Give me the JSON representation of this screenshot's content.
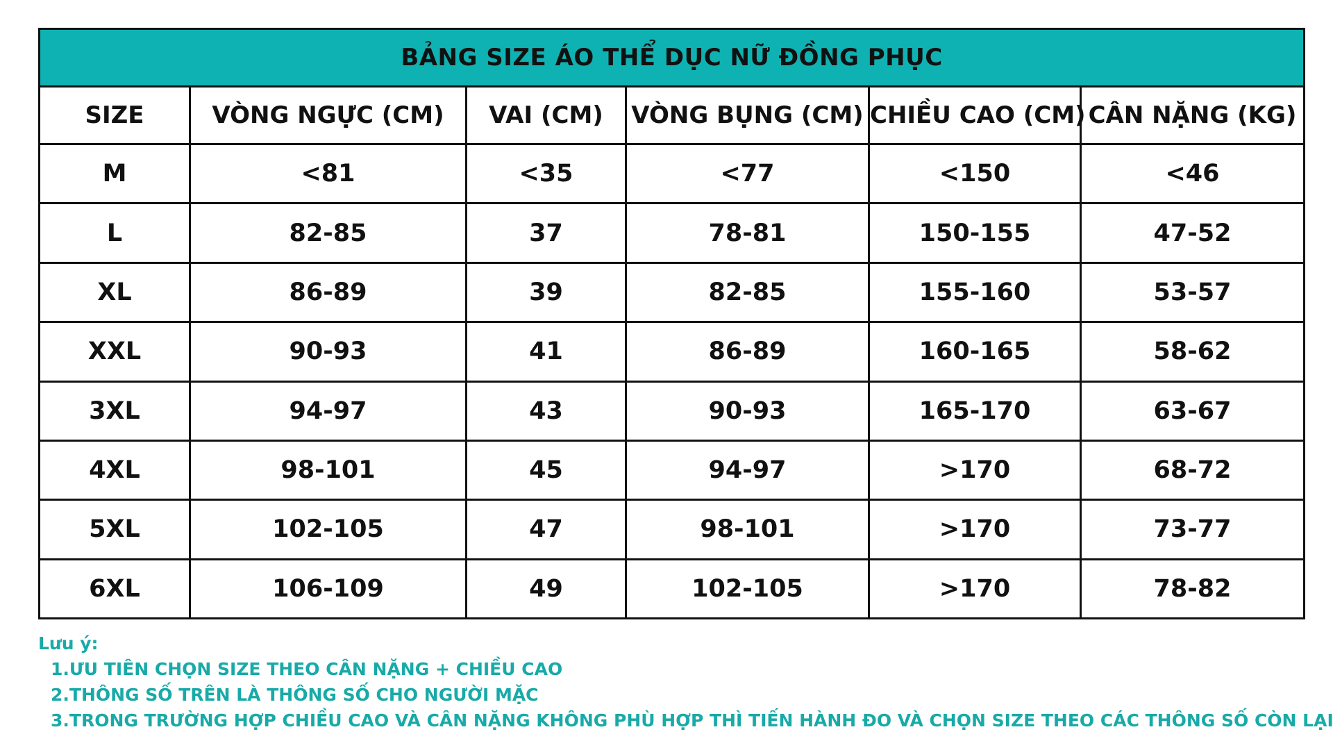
{
  "title": "BẢNG SIZE ÁO THỂ DỤC NỮ ĐỒNG PHỤC",
  "accent_color": "#0fb2b2",
  "table": {
    "headers": [
      "SIZE",
      "VÒNG NGỰC (CM)",
      "VAI (CM)",
      "VÒNG BỤNG (CM)",
      "CHIỀU CAO (CM)",
      "CÂN NẶNG (KG)"
    ],
    "rows": [
      [
        "M",
        "<81",
        "<35",
        "<77",
        "<150",
        "<46"
      ],
      [
        "L",
        "82-85",
        "37",
        "78-81",
        "150-155",
        "47-52"
      ],
      [
        "XL",
        "86-89",
        "39",
        "82-85",
        "155-160",
        "53-57"
      ],
      [
        "XXL",
        "90-93",
        "41",
        "86-89",
        "160-165",
        "58-62"
      ],
      [
        "3XL",
        "94-97",
        "43",
        "90-93",
        "165-170",
        "63-67"
      ],
      [
        "4XL",
        "98-101",
        "45",
        "94-97",
        ">170",
        "68-72"
      ],
      [
        "5XL",
        "102-105",
        "47",
        "98-101",
        ">170",
        "73-77"
      ],
      [
        "6XL",
        "106-109",
        "49",
        "102-105",
        ">170",
        "78-82"
      ]
    ]
  },
  "notes": {
    "title": "Lưu ý:",
    "items": [
      "1.ƯU TIÊN CHỌN SIZE THEO CÂN NẶNG + CHIỀU CAO",
      "2.THÔNG SỐ TRÊN LÀ THÔNG SỐ CHO NGƯỜI MẶC",
      "3.TRONG TRƯỜNG HỢP CHIỀU CAO VÀ CÂN NẶNG KHÔNG PHÙ HỢP THÌ TIẾN HÀNH ĐO VÀ CHỌN SIZE THEO CÁC THÔNG SỐ CÒN LẠI"
    ]
  }
}
